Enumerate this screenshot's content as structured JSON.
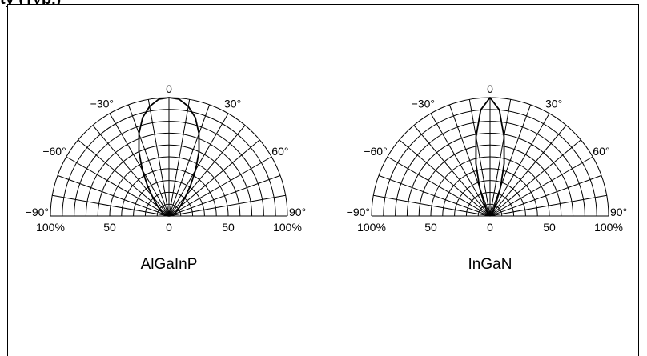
{
  "header": {
    "title_fragment": "ty (Typ.)"
  },
  "chart_data": [
    {
      "type": "polar",
      "caption": "AlGaInP",
      "angle_labels": [
        "0",
        "−30°",
        "30°",
        "−60°",
        "60°",
        "−90°",
        "90°"
      ],
      "radial_tick_labels": [
        "100%",
        "50",
        "0",
        "50",
        "100%"
      ],
      "angle_range": [
        -90,
        90
      ],
      "radial_range": [
        0,
        100
      ],
      "grid": true,
      "series": [
        {
          "angles": [
            -90,
            -80,
            -70,
            -60,
            -50,
            -45,
            -40,
            -35,
            -30,
            -25,
            -20,
            -15,
            -10,
            -5,
            0,
            5,
            10,
            15,
            20,
            25,
            30,
            35,
            40,
            45,
            50,
            60,
            70,
            80,
            90
          ],
          "values": [
            0,
            2,
            4,
            7,
            12,
            16,
            22,
            32,
            45,
            60,
            74,
            86,
            94,
            99,
            100,
            99,
            94,
            86,
            74,
            60,
            45,
            32,
            22,
            16,
            12,
            7,
            4,
            2,
            0
          ]
        }
      ]
    },
    {
      "type": "polar",
      "caption": "InGaN",
      "angle_labels": [
        "0",
        "−30°",
        "30°",
        "−60°",
        "60°",
        "−90°",
        "90°"
      ],
      "radial_tick_labels": [
        "100%",
        "50",
        "0",
        "50",
        "100%"
      ],
      "angle_range": [
        -90,
        90
      ],
      "radial_range": [
        0,
        100
      ],
      "grid": true,
      "series": [
        {
          "angles": [
            -90,
            -60,
            -40,
            -30,
            -25,
            -20,
            -15,
            -10,
            -5,
            0,
            5,
            10,
            15,
            20,
            25,
            30,
            40,
            60,
            90
          ],
          "values": [
            0,
            1,
            3,
            6,
            12,
            26,
            46,
            68,
            90,
            100,
            90,
            68,
            46,
            26,
            12,
            6,
            3,
            1,
            0
          ]
        }
      ]
    }
  ]
}
